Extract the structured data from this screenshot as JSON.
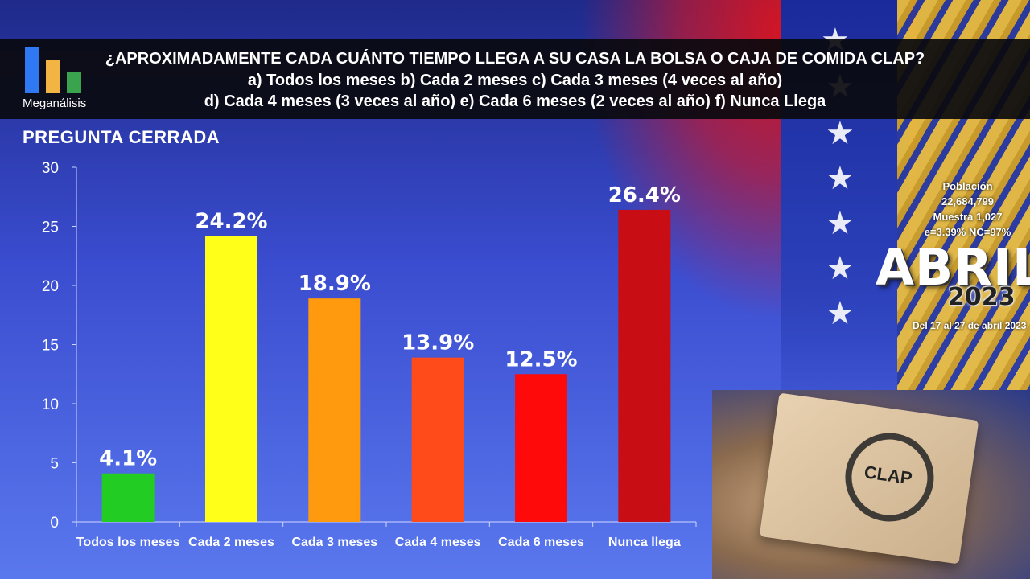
{
  "header": {
    "logo_label": "Meganálisis",
    "question": "¿APROXIMADAMENTE CADA CUÁNTO TIEMPO LLEGA A SU CASA LA BOLSA O CAJA DE COMIDA CLAP?",
    "options_line1": "a)   Todos los meses  b) Cada 2 meses c) Cada 3 meses (4 veces al año)",
    "options_line2": "d) Cada 4 meses  (3 veces al año) e) Cada 6 meses  (2 veces al año) f) Nunca Llega"
  },
  "question_type": "PREGUNTA CERRADA",
  "side_info": {
    "poblacion_label": "Población",
    "poblacion_value": "22,684,799",
    "muestra": "Muestra 1,027",
    "error": "e=3.39%  NC=97%",
    "month": "ABRIL",
    "year": "2023",
    "dates": "Del 17 al 27 de abril 2023"
  },
  "photo": {
    "box_text": "CLAP"
  },
  "chart_data": {
    "type": "bar",
    "title": "",
    "xlabel": "",
    "ylabel": "",
    "categories": [
      "Todos los meses",
      "Cada 2 meses",
      "Cada 3 meses",
      "Cada 4 meses",
      "Cada 6 meses",
      "Nunca llega"
    ],
    "values": [
      4.1,
      24.2,
      18.9,
      13.9,
      12.5,
      26.4
    ],
    "data_labels": [
      "4.1%",
      "24.2%",
      "18.9%",
      "13.9%",
      "12.5%",
      "26.4%"
    ],
    "colors": [
      "#22cc22",
      "#ffff1a",
      "#ff9a0e",
      "#ff4a1a",
      "#ff0a0a",
      "#c80d14"
    ],
    "ylim": [
      0,
      30
    ],
    "yticks": [
      0,
      5,
      10,
      15,
      20,
      25,
      30
    ],
    "grid": false,
    "legend": "none"
  }
}
